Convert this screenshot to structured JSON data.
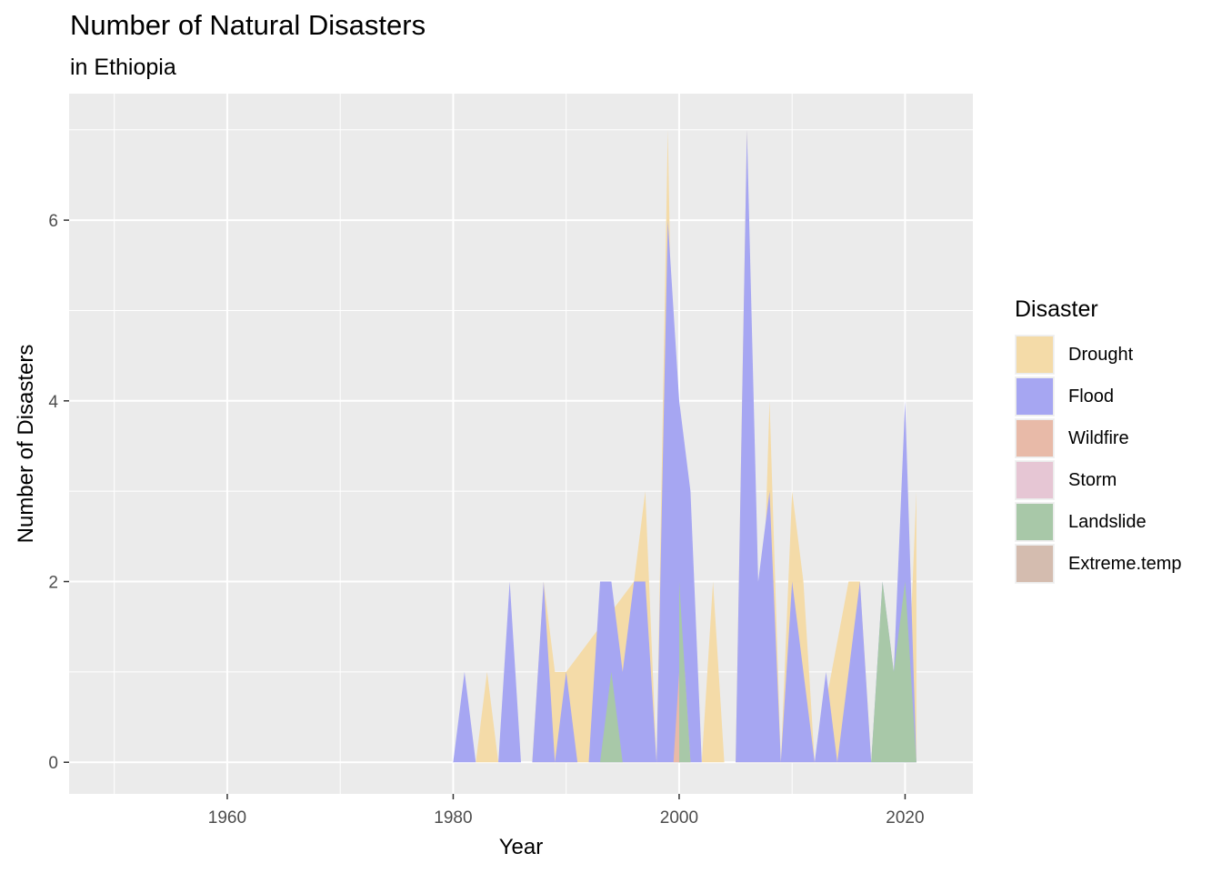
{
  "chart_data": {
    "type": "area",
    "title": "Number of Natural Disasters",
    "subtitle": "in Ethiopia",
    "xlabel": "Year",
    "ylabel": "Number of Disasters",
    "xlim": [
      1946,
      2026
    ],
    "ylim": [
      -0.35,
      7.4
    ],
    "x_ticks": [
      1960,
      1980,
      2000,
      2020
    ],
    "x_minor": [
      1950,
      1970,
      1990,
      2010
    ],
    "y_ticks": [
      0,
      2,
      4,
      6
    ],
    "y_minor": [
      1,
      3,
      5,
      7
    ],
    "grid": true,
    "legend_title": "Disaster",
    "legend_position": "right",
    "series": [
      {
        "name": "Drought",
        "color": "#F4DBA8",
        "points": [
          [
            1982,
            0
          ],
          [
            1983,
            1
          ],
          [
            1984,
            0
          ],
          [
            1986,
            0
          ],
          [
            1987,
            0
          ],
          [
            1988,
            2
          ],
          [
            1989,
            1
          ],
          [
            1990,
            1
          ],
          [
            1996,
            2
          ],
          [
            1997,
            3
          ],
          [
            1998,
            0
          ],
          [
            1999,
            7
          ],
          [
            2000,
            0
          ],
          [
            2002,
            0
          ],
          [
            2003,
            2
          ],
          [
            2004,
            0
          ],
          [
            2005,
            0
          ],
          [
            2006,
            7
          ],
          [
            2007,
            0
          ],
          [
            2008,
            4
          ],
          [
            2009,
            0
          ],
          [
            2010,
            3
          ],
          [
            2011,
            2
          ],
          [
            2012,
            0
          ],
          [
            2015,
            2
          ],
          [
            2016,
            2
          ],
          [
            2017,
            0
          ],
          [
            2020,
            0
          ],
          [
            2021,
            3
          ],
          [
            2021,
            0
          ]
        ]
      },
      {
        "name": "Flood",
        "color": "#A6A6F2",
        "points": [
          [
            1980,
            0
          ],
          [
            1981,
            1
          ],
          [
            1982,
            0
          ],
          [
            1984,
            0
          ],
          [
            1985,
            2
          ],
          [
            1986,
            0
          ],
          [
            1987,
            0
          ],
          [
            1988,
            2
          ],
          [
            1989,
            0
          ],
          [
            1990,
            1
          ],
          [
            1991,
            0
          ],
          [
            1992,
            0
          ],
          [
            1993,
            2
          ],
          [
            1994,
            2
          ],
          [
            1995,
            1
          ],
          [
            1996,
            2
          ],
          [
            1997,
            2
          ],
          [
            1998,
            0
          ],
          [
            1999,
            6
          ],
          [
            2000,
            4
          ],
          [
            2001,
            3
          ],
          [
            2002,
            0
          ],
          [
            2004,
            0
          ],
          [
            2005,
            0
          ],
          [
            2006,
            7
          ],
          [
            2007,
            2
          ],
          [
            2008,
            3
          ],
          [
            2009,
            0
          ],
          [
            2010,
            2
          ],
          [
            2011,
            1
          ],
          [
            2012,
            0
          ],
          [
            2013,
            1
          ],
          [
            2014,
            0
          ],
          [
            2016,
            2
          ],
          [
            2017,
            0
          ],
          [
            2018,
            2
          ],
          [
            2019,
            1
          ],
          [
            2020,
            4
          ],
          [
            2021,
            0
          ]
        ]
      },
      {
        "name": "Wildfire",
        "color": "#E8BAA8",
        "points": [
          [
            1999.5,
            0
          ],
          [
            2000,
            1
          ],
          [
            2000.5,
            1
          ],
          [
            2001,
            0
          ]
        ]
      },
      {
        "name": "Storm",
        "color": "#E6C6D4",
        "points": []
      },
      {
        "name": "Landslide",
        "color": "#A8C8A8",
        "points": [
          [
            1993,
            0
          ],
          [
            1994,
            1
          ],
          [
            1995,
            0
          ],
          [
            2000,
            0
          ],
          [
            2000,
            2
          ],
          [
            2001,
            0
          ],
          [
            2017,
            0
          ],
          [
            2018,
            2
          ],
          [
            2019,
            1
          ],
          [
            2020,
            2
          ],
          [
            2021,
            0
          ]
        ]
      },
      {
        "name": "Extreme.temp",
        "color": "#D4BCAF",
        "points": []
      }
    ]
  }
}
